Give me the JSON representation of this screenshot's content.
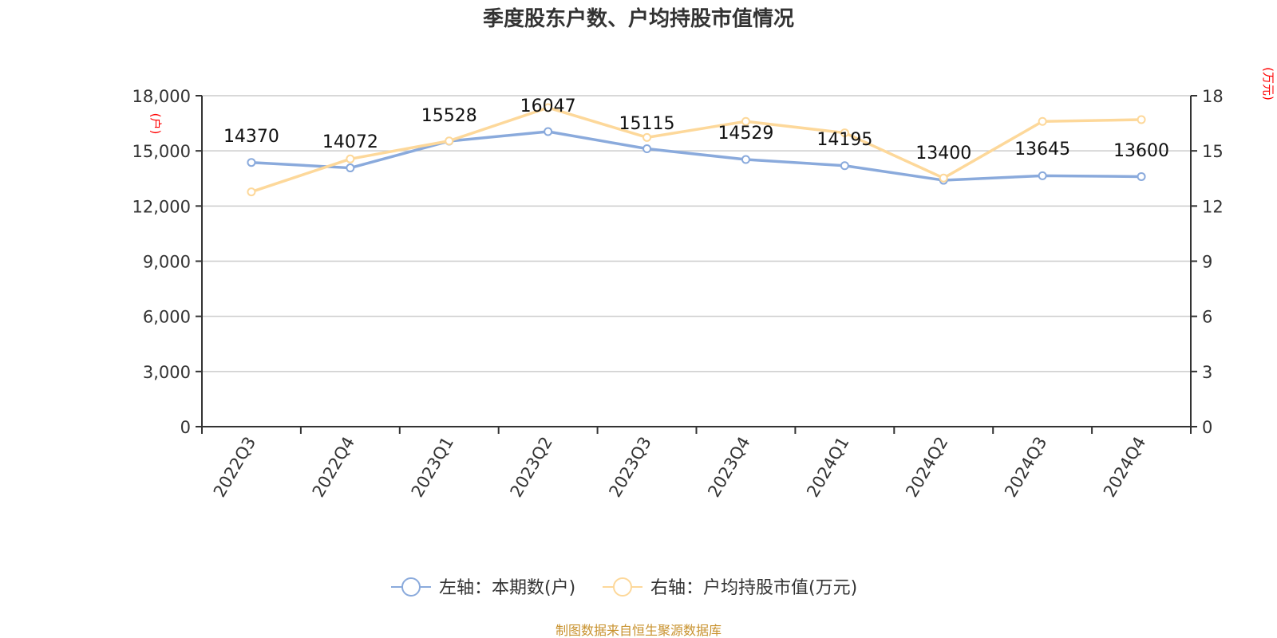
{
  "title": "季度股东户数、户均持股市值情况",
  "left_axis": {
    "unit_label": "(户)",
    "ticks": [
      "0",
      "3,000",
      "6,000",
      "9,000",
      "12,000",
      "15,000",
      "18,000"
    ],
    "min": 0,
    "max": 18000
  },
  "right_axis": {
    "unit_label": "(万元)",
    "ticks": [
      "0",
      "3",
      "6",
      "9",
      "12",
      "15",
      "18"
    ],
    "min": 0,
    "max": 18
  },
  "legend": {
    "items": [
      {
        "label": "左轴：本期数(户)",
        "color": "#8aaadc"
      },
      {
        "label": "右轴：户均持股市值(万元)",
        "color": "#fdd89a"
      }
    ]
  },
  "footer": "制图数据来自恒生聚源数据库",
  "chart_data": {
    "type": "line",
    "title": "季度股东户数、户均持股市值情况",
    "categories": [
      "2022Q3",
      "2022Q4",
      "2023Q1",
      "2023Q2",
      "2023Q3",
      "2023Q4",
      "2024Q1",
      "2024Q2",
      "2024Q3",
      "2024Q4"
    ],
    "series": [
      {
        "name": "左轴：本期数(户)",
        "axis": "left",
        "color": "#8aaadc",
        "values": [
          14370,
          14072,
          15528,
          16047,
          15115,
          14529,
          14195,
          13400,
          13645,
          13600
        ],
        "data_labels": [
          "14370",
          "14072",
          "15528",
          "16047",
          "15115",
          "14529",
          "14195",
          "13400",
          "13645",
          "13600"
        ]
      },
      {
        "name": "右轴：户均持股市值(万元)",
        "axis": "right",
        "color": "#fdd89a",
        "values": [
          12.77,
          14.56,
          15.54,
          17.35,
          15.73,
          16.6,
          15.98,
          13.52,
          16.6,
          16.7
        ]
      }
    ],
    "xlabel": "",
    "ylabel_left": "(户)",
    "ylabel_right": "(万元)",
    "ylim_left": [
      0,
      18000
    ],
    "ylim_right": [
      0,
      18
    ],
    "grid": true,
    "legend_position": "bottom"
  }
}
